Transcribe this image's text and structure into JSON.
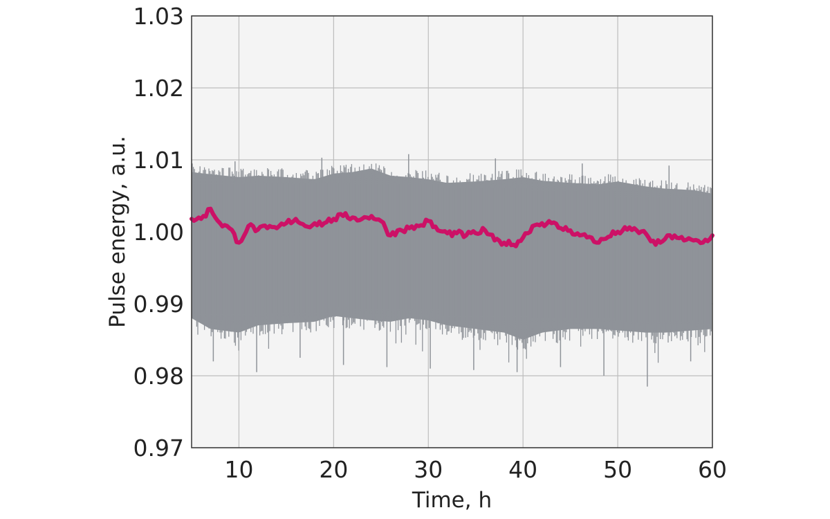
{
  "chart_data": {
    "type": "line",
    "xlabel": "Time, h",
    "ylabel": "Pulse energy, a.u.",
    "xlim": [
      5,
      60
    ],
    "ylim": [
      0.97,
      1.03
    ],
    "x_ticks": [
      10,
      20,
      30,
      40,
      50,
      60
    ],
    "x_tick_labels": [
      "10",
      "20",
      "30",
      "40",
      "50",
      "60"
    ],
    "y_ticks": [
      0.97,
      0.98,
      0.99,
      1.0,
      1.01,
      1.02,
      1.03
    ],
    "y_tick_labels": [
      "0.97",
      "0.98",
      "0.99",
      "1.00",
      "1.01",
      "1.02",
      "1.03"
    ],
    "grid": true,
    "plot_background": "#f4f4f4",
    "series": [
      {
        "kind": "raw-band",
        "color": "#8f9399",
        "x": [
          5,
          7,
          10,
          12,
          15,
          18,
          20,
          22,
          24,
          26,
          28,
          30,
          32,
          35,
          38,
          40,
          42,
          45,
          48,
          50,
          53,
          55,
          58,
          60
        ],
        "upper": [
          1.0095,
          1.0092,
          1.0088,
          1.009,
          1.0088,
          1.0085,
          1.0093,
          1.0095,
          1.01,
          1.009,
          1.0088,
          1.0085,
          1.008,
          1.0082,
          1.0085,
          1.0088,
          1.0083,
          1.008,
          1.0078,
          1.0082,
          1.0075,
          1.0072,
          1.007,
          1.0065
        ],
        "lower": [
          0.9865,
          0.985,
          0.9845,
          0.9855,
          0.9858,
          0.986,
          0.9868,
          0.9865,
          0.9862,
          0.986,
          0.9865,
          0.9862,
          0.9855,
          0.985,
          0.9845,
          0.9835,
          0.9845,
          0.985,
          0.985,
          0.9848,
          0.9845,
          0.9845,
          0.9848,
          0.985
        ],
        "upper_spikes": [
          1.0098,
          1.0103,
          1.0108,
          1.0102,
          1.0095,
          1.0092
        ],
        "lower_spikes": [
          0.982,
          0.9805,
          0.9825,
          0.9815,
          0.9812,
          0.981,
          0.9808,
          0.9805,
          0.9812,
          0.98,
          0.9785,
          0.982
        ]
      },
      {
        "kind": "average",
        "color": "#cc1166",
        "x": [
          5,
          6,
          7,
          8,
          9,
          10,
          11,
          12,
          13,
          14,
          15,
          16,
          17,
          18,
          19,
          20,
          21,
          22,
          23,
          24,
          25,
          26,
          27,
          28,
          29,
          30,
          31,
          32,
          33,
          34,
          35,
          36,
          37,
          38,
          39,
          40,
          41,
          42,
          43,
          44,
          45,
          46,
          47,
          48,
          49,
          50,
          51,
          52,
          53,
          54,
          55,
          56,
          57,
          58,
          59,
          60
        ],
        "values": [
          1.0018,
          1.0018,
          1.0032,
          1.0012,
          1.0005,
          0.9985,
          1.0008,
          1.0003,
          1.0005,
          1.0005,
          1.0012,
          1.0018,
          1.0008,
          1.0012,
          1.0012,
          1.0018,
          1.0022,
          1.002,
          1.0018,
          1.0022,
          1.0015,
          0.9995,
          1.0003,
          1.0005,
          1.0008,
          1.0015,
          1.0002,
          0.9998,
          0.9998,
          0.9995,
          0.9998,
          1.0002,
          0.9988,
          0.9985,
          0.9982,
          0.9992,
          1.0008,
          1.0012,
          1.0012,
          1.0005,
          1.0002,
          0.9995,
          0.9993,
          0.9985,
          0.9993,
          1.0,
          1.0003,
          1.0002,
          0.9997,
          0.9982,
          0.999,
          0.9995,
          0.9988,
          0.9988,
          0.9985,
          0.9995
        ]
      }
    ]
  }
}
